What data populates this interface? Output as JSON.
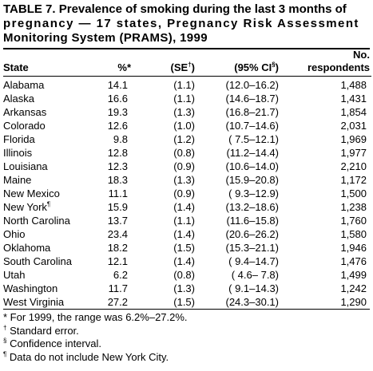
{
  "title": {
    "line1": "TABLE 7. Prevalence of smoking during the last 3 months of",
    "line2": "pregnancy — 17 states, Pregnancy Risk Assessment",
    "line3": "Monitoring System (PRAMS), 1999"
  },
  "columns": {
    "state": "State",
    "percent": "%",
    "percent_mark": "*",
    "se": "(SE",
    "se_mark": "†",
    "se_close": ")",
    "ci": "(95% CI",
    "ci_mark": "§",
    "ci_close": ")",
    "no_line1": "No.",
    "no_line2": "respondents"
  },
  "rows": [
    {
      "state": "Alabama",
      "mark": "",
      "pct": "14.1",
      "se": "(1.1)",
      "ci": "(12.0–16.2)",
      "n": "1,488"
    },
    {
      "state": "Alaska",
      "mark": "",
      "pct": "16.6",
      "se": "(1.1)",
      "ci": "(14.6–18.7)",
      "n": "1,431"
    },
    {
      "state": "Arkansas",
      "mark": "",
      "pct": "19.3",
      "se": "(1.3)",
      "ci": "(16.8–21.7)",
      "n": "1,854"
    },
    {
      "state": "Colorado",
      "mark": "",
      "pct": "12.6",
      "se": "(1.0)",
      "ci": "(10.7–14.6)",
      "n": "2,031"
    },
    {
      "state": "Florida",
      "mark": "",
      "pct": "9.8",
      "se": "(1.2)",
      "ci": "( 7.5–12.1)",
      "n": "1,969"
    },
    {
      "state": "Illinois",
      "mark": "",
      "pct": "12.8",
      "se": "(0.8)",
      "ci": "(11.2–14.4)",
      "n": "1,977"
    },
    {
      "state": "Louisiana",
      "mark": "",
      "pct": "12.3",
      "se": "(0.9)",
      "ci": "(10.6–14.0)",
      "n": "2,210"
    },
    {
      "state": "Maine",
      "mark": "",
      "pct": "18.3",
      "se": "(1.3)",
      "ci": "(15.9–20.8)",
      "n": "1,172"
    },
    {
      "state": "New Mexico",
      "mark": "",
      "pct": "11.1",
      "se": "(0.9)",
      "ci": "( 9.3–12.9)",
      "n": "1,500"
    },
    {
      "state": "New York",
      "mark": "¶",
      "pct": "15.9",
      "se": "(1.4)",
      "ci": "(13.2–18.6)",
      "n": "1,238"
    },
    {
      "state": "North Carolina",
      "mark": "",
      "pct": "13.7",
      "se": "(1.1)",
      "ci": "(11.6–15.8)",
      "n": "1,760"
    },
    {
      "state": "Ohio",
      "mark": "",
      "pct": "23.4",
      "se": "(1.4)",
      "ci": "(20.6–26.2)",
      "n": "1,580"
    },
    {
      "state": "Oklahoma",
      "mark": "",
      "pct": "18.2",
      "se": "(1.5)",
      "ci": "(15.3–21.1)",
      "n": "1,946"
    },
    {
      "state": "South Carolina",
      "mark": "",
      "pct": "12.1",
      "se": "(1.4)",
      "ci": "( 9.4–14.7)",
      "n": "1,476"
    },
    {
      "state": "Utah",
      "mark": "",
      "pct": "6.2",
      "se": "(0.8)",
      "ci": "( 4.6– 7.8)",
      "n": "1,499"
    },
    {
      "state": "Washington",
      "mark": "",
      "pct": "11.7",
      "se": "(1.3)",
      "ci": "( 9.1–14.3)",
      "n": "1,242"
    },
    {
      "state": "West Virginia",
      "mark": "",
      "pct": "27.2",
      "se": "(1.5)",
      "ci": "(24.3–30.1)",
      "n": "1,290"
    }
  ],
  "footnotes": [
    {
      "mark": "*",
      "text": " For 1999, the range was 6.2%–27.2%."
    },
    {
      "mark": "†",
      "text": " Standard error."
    },
    {
      "mark": "§",
      "text": " Confidence interval."
    },
    {
      "mark": "¶",
      "text": " Data do not include New York City."
    }
  ]
}
